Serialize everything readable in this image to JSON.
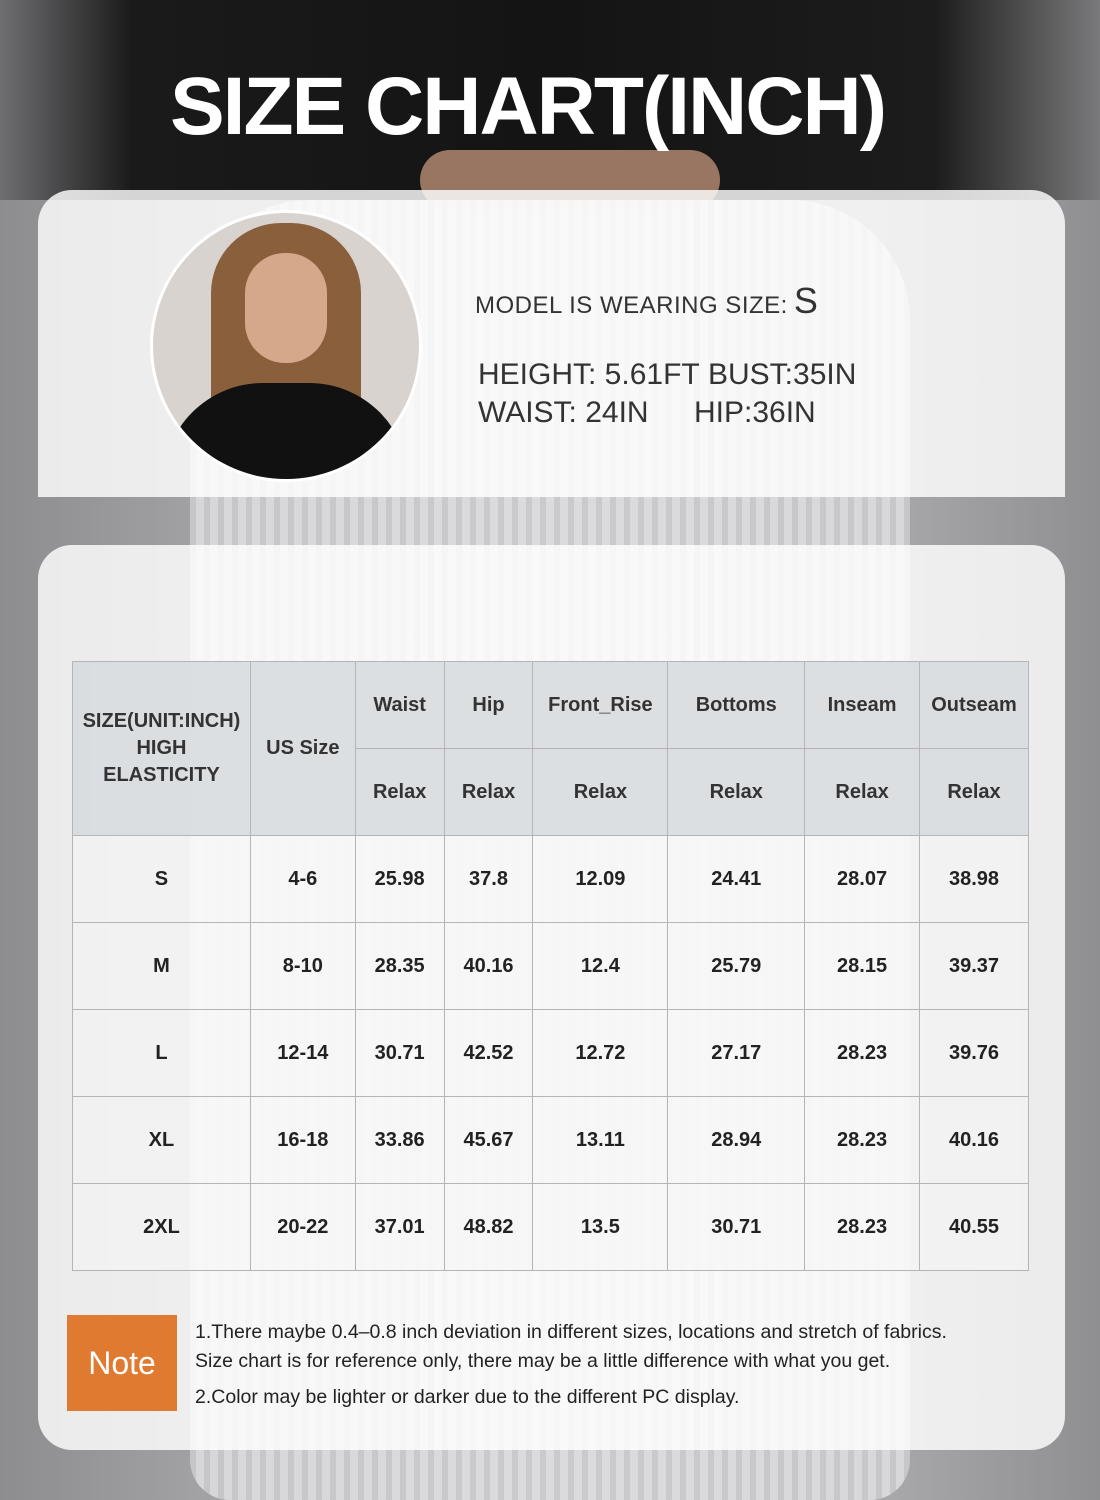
{
  "title": "SIZE CHART(INCH)",
  "model": {
    "wearing_label": "MODEL IS WEARING SIZE:",
    "wearing_size": "S",
    "height": "HEIGHT: 5.61FT",
    "bust": "BUST:35IN",
    "waist": "WAIST: 24IN",
    "hip": "HIP:36IN"
  },
  "table": {
    "corner_header": [
      "SIZE(UNIT:INCH)",
      "HIGH",
      "ELASTICITY"
    ],
    "us_size_header": "US Size",
    "columns": [
      "Waist",
      "Hip",
      "Front_Rise",
      "Bottoms",
      "Inseam",
      "Outseam"
    ],
    "sub_header": "Relax",
    "rows": [
      [
        "S",
        "4-6",
        "25.98",
        "37.8",
        "12.09",
        "24.41",
        "28.07",
        "38.98"
      ],
      [
        "M",
        "8-10",
        "28.35",
        "40.16",
        "12.4",
        "25.79",
        "28.15",
        "39.37"
      ],
      [
        "L",
        "12-14",
        "30.71",
        "42.52",
        "12.72",
        "27.17",
        "28.23",
        "39.76"
      ],
      [
        "XL",
        "16-18",
        "33.86",
        "45.67",
        "13.11",
        "28.94",
        "28.23",
        "40.16"
      ],
      [
        "2XL",
        "20-22",
        "37.01",
        "48.82",
        "13.5",
        "30.71",
        "28.23",
        "40.55"
      ]
    ]
  },
  "note": {
    "label": "Note",
    "color": "#e07a30",
    "lines": [
      "1.There maybe 0.4–0.8 inch deviation in different sizes, locations and stretch of fabrics.",
      " Size chart is for reference only, there may be a little difference with what you get.",
      "2.Color may be lighter or darker due to the different PC display."
    ]
  }
}
